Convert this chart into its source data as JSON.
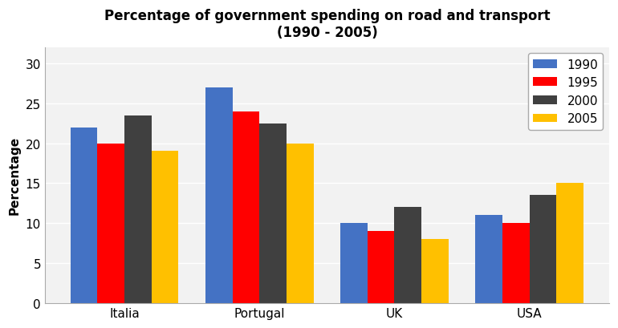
{
  "title": "Percentage of government spending on road and transport\n(1990 - 2005)",
  "ylabel": "Percentage",
  "categories": [
    "Italia",
    "Portugal",
    "UK",
    "USA"
  ],
  "years": [
    "1990",
    "1995",
    "2000",
    "2005"
  ],
  "values": {
    "1990": [
      22,
      27,
      10,
      11
    ],
    "1995": [
      20,
      24,
      9,
      10
    ],
    "2000": [
      23.5,
      22.5,
      12,
      13.5
    ],
    "2005": [
      19,
      20,
      8,
      15
    ]
  },
  "colors": {
    "1990": "#4472C4",
    "1995": "#FF0000",
    "2000": "#404040",
    "2005": "#FFC000"
  },
  "ylim": [
    0,
    32
  ],
  "yticks": [
    0,
    5,
    10,
    15,
    20,
    25,
    30
  ],
  "bar_width": 0.2,
  "title_fontsize": 12,
  "axis_label_fontsize": 11,
  "tick_fontsize": 11,
  "legend_fontsize": 11,
  "background_color": "#FFFFFF",
  "plot_bg_color": "#F2F2F2",
  "grid_color": "#FFFFFF"
}
